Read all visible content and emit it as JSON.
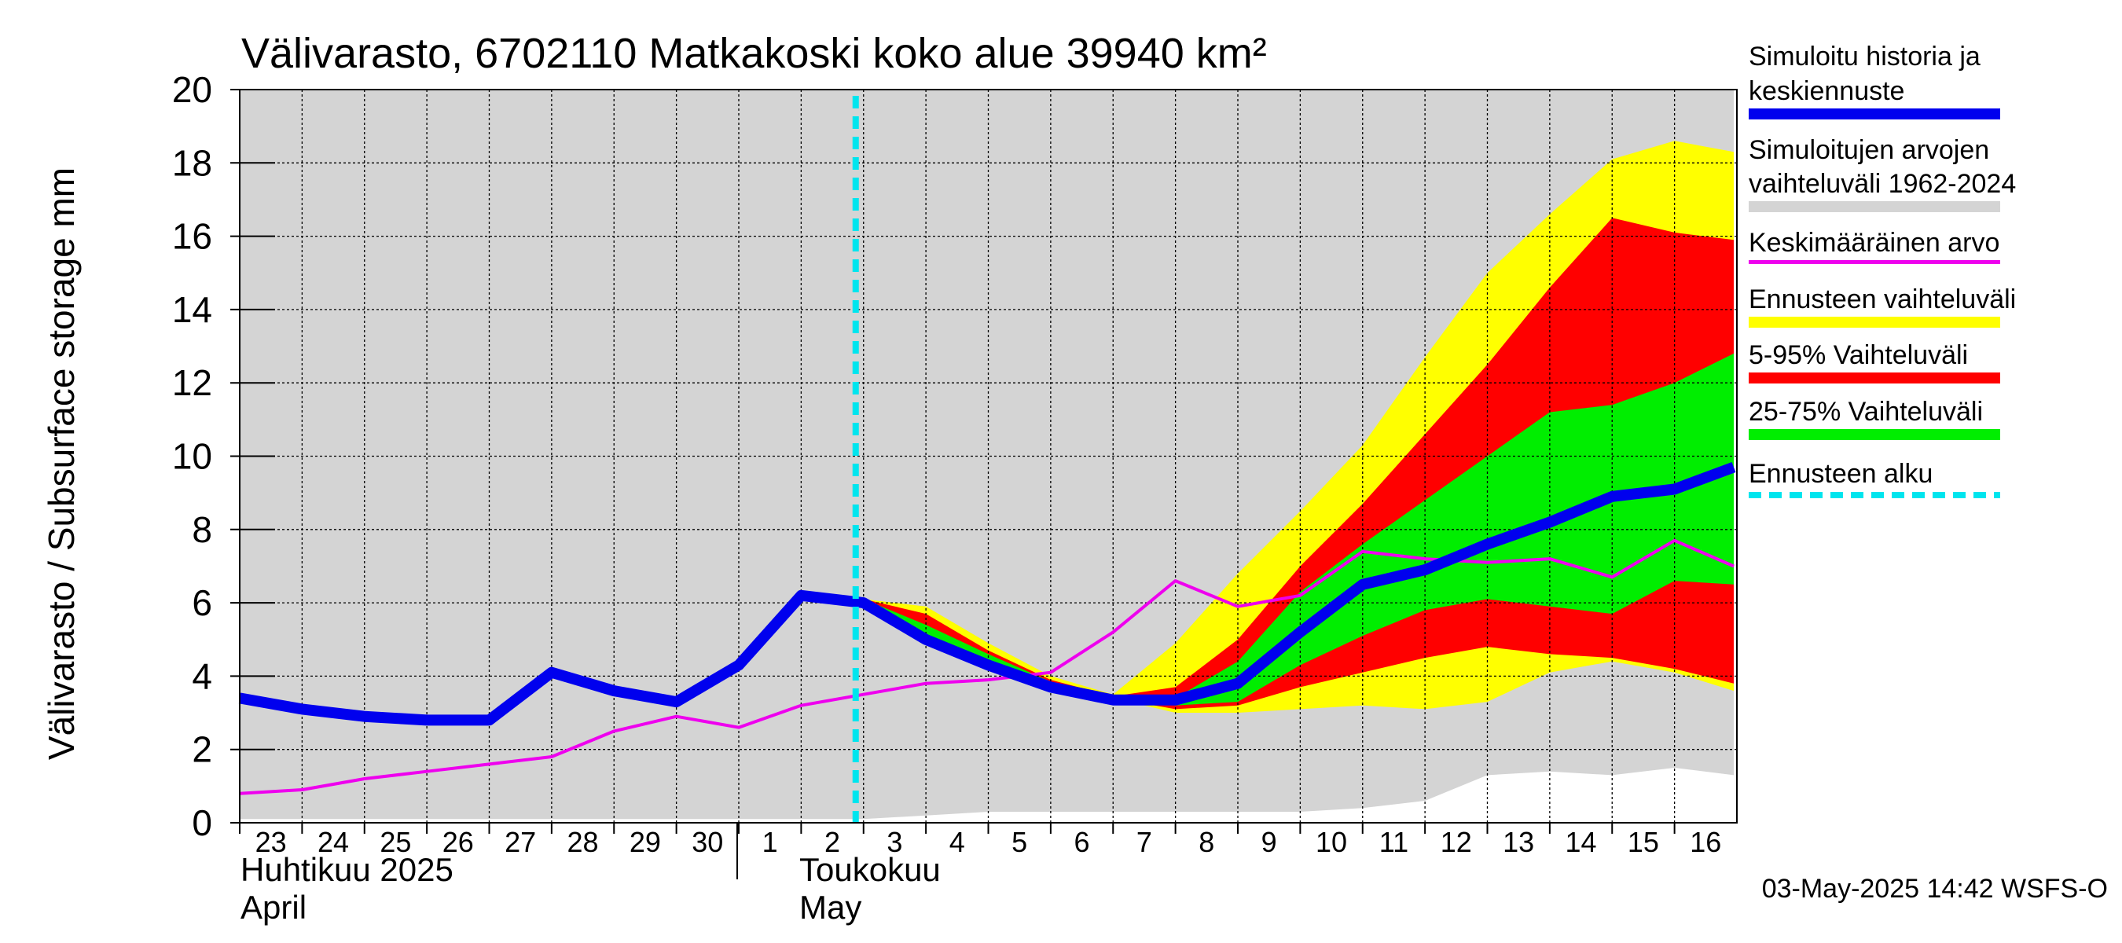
{
  "chart_data": {
    "type": "area",
    "title": "Välivarasto, 6702110 Matkakoski koko alue 39940 km²",
    "ylabel": "Välivarasto / Subsurface storage  mm",
    "ylim": [
      0,
      20
    ],
    "yticks": [
      0,
      2,
      4,
      6,
      8,
      10,
      12,
      14,
      16,
      18,
      20
    ],
    "grid": true,
    "x_day_labels": [
      "23",
      "24",
      "25",
      "26",
      "27",
      "28",
      "29",
      "30",
      "1",
      "2",
      "3",
      "4",
      "5",
      "6",
      "7",
      "8",
      "9",
      "10",
      "11",
      "12",
      "13",
      "14",
      "15",
      "16"
    ],
    "month_labels": [
      {
        "fi": "Huhtikuu  2025",
        "en": "April"
      },
      {
        "fi": "Toukokuu",
        "en": "May"
      }
    ],
    "forecast_start_day_index": 10,
    "timestamp": "03-May-2025 14:42 WSFS-O",
    "series": {
      "hist_range_days": [
        0,
        1,
        2,
        3,
        4,
        5,
        6,
        7,
        8,
        9,
        10,
        11,
        12,
        13,
        14,
        15,
        16,
        17,
        18,
        19,
        20,
        21,
        22,
        23,
        23.95
      ],
      "hist_range_low": [
        0.1,
        0.1,
        0.1,
        0.1,
        0.1,
        0.1,
        0.1,
        0.1,
        0.1,
        0.1,
        0.1,
        0.2,
        0.3,
        0.3,
        0.3,
        0.3,
        0.3,
        0.3,
        0.4,
        0.6,
        1.3,
        1.4,
        1.3,
        1.5,
        1.3
      ],
      "hist_range_high": [
        20,
        20,
        20,
        20,
        20,
        20,
        20,
        20,
        20,
        20,
        20,
        20,
        20,
        20,
        20,
        20,
        20,
        20,
        20,
        20,
        20,
        20,
        20,
        20,
        20
      ],
      "forecast_days": [
        10,
        11,
        12,
        13,
        14,
        15,
        16,
        17,
        18,
        19,
        20,
        21,
        22,
        23,
        23.95
      ],
      "ens_max": [
        6.1,
        5.9,
        4.9,
        4.0,
        3.5,
        4.9,
        6.8,
        8.5,
        10.3,
        12.7,
        15.0,
        16.6,
        18.1,
        18.6,
        18.3
      ],
      "ens_min": [
        6.0,
        5.0,
        4.3,
        3.7,
        3.4,
        3.0,
        3.0,
        3.1,
        3.2,
        3.1,
        3.3,
        4.1,
        4.4,
        4.1,
        3.6
      ],
      "p95": [
        6.1,
        5.7,
        4.7,
        3.9,
        3.45,
        3.7,
        5.0,
        7.0,
        8.7,
        10.6,
        12.5,
        14.6,
        16.5,
        16.1,
        15.9
      ],
      "p05": [
        6.05,
        5.2,
        4.4,
        3.75,
        3.4,
        3.1,
        3.2,
        3.7,
        4.1,
        4.5,
        4.8,
        4.6,
        4.5,
        4.2,
        3.8
      ],
      "p75": [
        6.1,
        5.4,
        4.6,
        3.85,
        3.4,
        3.4,
        4.4,
        6.3,
        7.6,
        8.8,
        10.0,
        11.2,
        11.4,
        12.0,
        12.8
      ],
      "p25": [
        6.05,
        5.1,
        4.3,
        3.75,
        3.4,
        3.2,
        3.3,
        4.3,
        5.1,
        5.8,
        6.1,
        5.9,
        5.7,
        6.6,
        6.5
      ],
      "sim_days": [
        0,
        1,
        2,
        3,
        4,
        5,
        6,
        7,
        8,
        9,
        10,
        11,
        12,
        13,
        14,
        15,
        16,
        17,
        18,
        19,
        20,
        21,
        22,
        23,
        23.95
      ],
      "sim_median": [
        3.4,
        3.1,
        2.9,
        2.8,
        2.8,
        4.1,
        3.6,
        3.3,
        4.3,
        6.2,
        6.0,
        5.0,
        4.3,
        3.7,
        3.35,
        3.35,
        3.8,
        5.2,
        6.5,
        6.9,
        7.6,
        8.2,
        8.9,
        9.1,
        9.7
      ],
      "mean_days": [
        0,
        1,
        2,
        3,
        4,
        5,
        6,
        7,
        8,
        9,
        10,
        11,
        12,
        13,
        14,
        15,
        16,
        17,
        18,
        19,
        20,
        21,
        22,
        23,
        23.95
      ],
      "mean_value": [
        0.8,
        0.9,
        1.2,
        1.4,
        1.6,
        1.8,
        2.5,
        2.9,
        2.6,
        3.2,
        3.5,
        3.8,
        3.9,
        4.1,
        5.2,
        6.6,
        5.9,
        6.2,
        7.4,
        7.2,
        7.1,
        7.2,
        6.7,
        7.7,
        7.0
      ]
    },
    "legend": [
      {
        "label": "Simuloitu historia ja keskiennuste",
        "color": "#0000ee",
        "style": "thick-line"
      },
      {
        "label": "Simuloitujen arvojen vaihteluväli 1962-2024",
        "color": "#d4d4d4",
        "style": "band"
      },
      {
        "label": "Keskimääräinen arvo",
        "color": "#ee00ee",
        "style": "thin-line"
      },
      {
        "label": "Ennusteen vaihteluväli",
        "color": "#ffff00",
        "style": "band"
      },
      {
        "label": "5-95% Vaihteluväli",
        "color": "#ff0000",
        "style": "band"
      },
      {
        "label": "25-75% Vaihteluväli",
        "color": "#00ee00",
        "style": "band"
      },
      {
        "label": "Ennusteen alku",
        "color": "#00e5ee",
        "style": "dashed"
      }
    ],
    "colors": {
      "hist_range": "#d4d4d4",
      "ens_range": "#ffff00",
      "p5_95": "#ff0000",
      "p25_75": "#00ee00",
      "sim_median": "#0000ee",
      "mean": "#ee00ee",
      "forecast_start": "#00e5ee"
    }
  }
}
